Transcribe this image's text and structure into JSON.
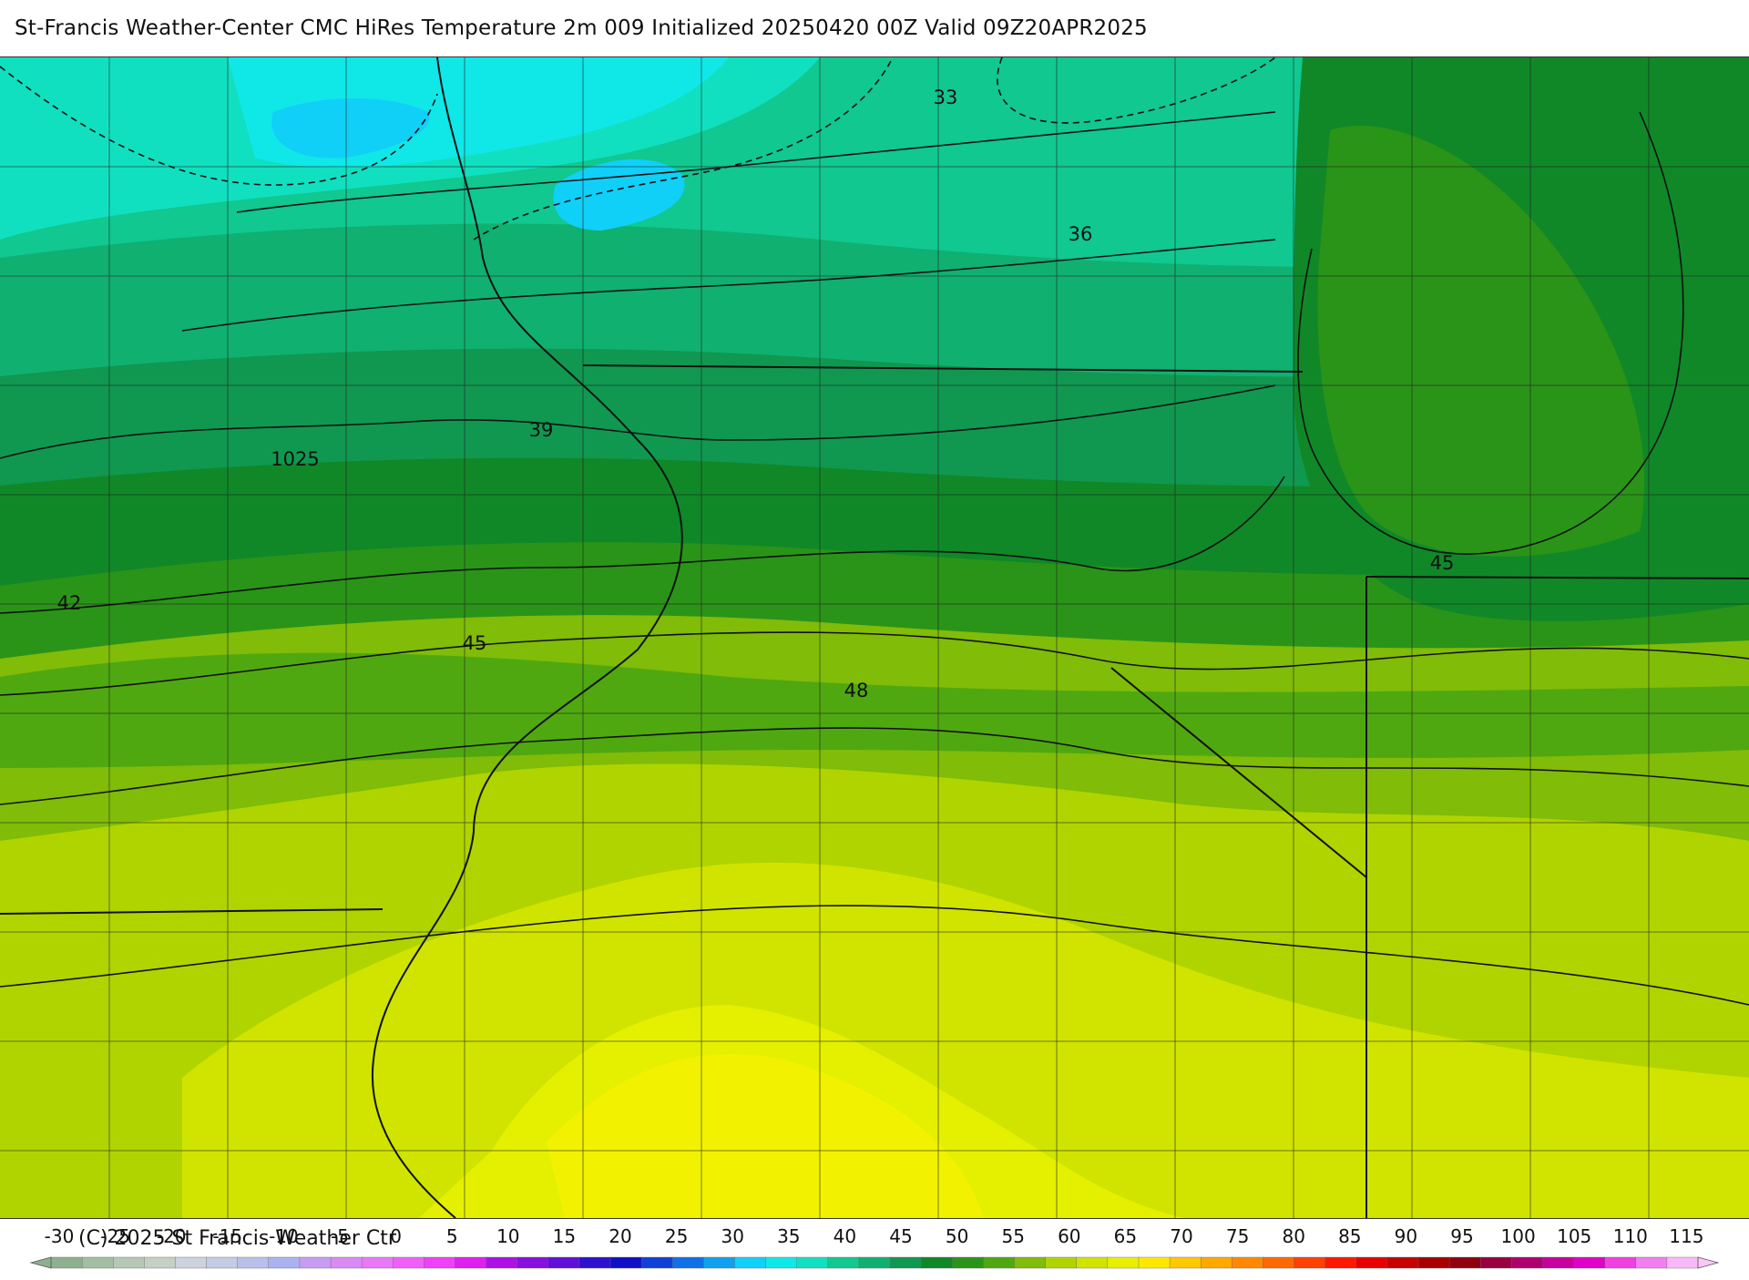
{
  "header": {
    "title": "St-Francis Weather-Center CMC HiRes Temperature 2m  009 Initialized 20250420 00Z Valid 09Z20APR2025"
  },
  "map": {
    "contour_labels": [
      "33",
      "36",
      "39",
      "1025",
      "42",
      "45",
      "48",
      "45"
    ]
  },
  "colorbar": {
    "tick_labels": [
      "-30",
      "-25",
      "-20",
      "-15",
      "-10",
      "-5",
      "0",
      "5",
      "10",
      "15",
      "20",
      "25",
      "30",
      "35",
      "40",
      "45",
      "50",
      "55",
      "60",
      "65",
      "70",
      "75",
      "80",
      "85",
      "90",
      "95",
      "100",
      "105",
      "110",
      "115"
    ],
    "colors": [
      "#8fb08f",
      "#a3bda3",
      "#b5c8b5",
      "#c4d0c4",
      "#cdd3dd",
      "#c4cbe4",
      "#b8c0ea",
      "#aab3ef",
      "#c79cf0",
      "#d98af3",
      "#e878f6",
      "#f060f8",
      "#f040f8",
      "#e020f0",
      "#b010e8",
      "#8810e0",
      "#6010d8",
      "#3010d0",
      "#1010c8",
      "#1040d8",
      "#1070e8",
      "#10a0f0",
      "#10d0f8",
      "#10e8e8",
      "#10e0c0",
      "#10c890",
      "#10b070",
      "#109850",
      "#108828",
      "#2a9418",
      "#50a810",
      "#80bc08",
      "#b0d400",
      "#d0e400",
      "#e8f000",
      "#ffe800",
      "#ffc800",
      "#ffa800",
      "#ff8800",
      "#ff6800",
      "#ff4000",
      "#ff1800",
      "#e80000",
      "#c80000",
      "#a80000",
      "#900010",
      "#980040",
      "#b00070",
      "#c800a0",
      "#e000c8",
      "#f040e0",
      "#f080f0",
      "#f8b8f8"
    ],
    "copyright": "(C) 2025 St Francis Weather Ctr"
  }
}
